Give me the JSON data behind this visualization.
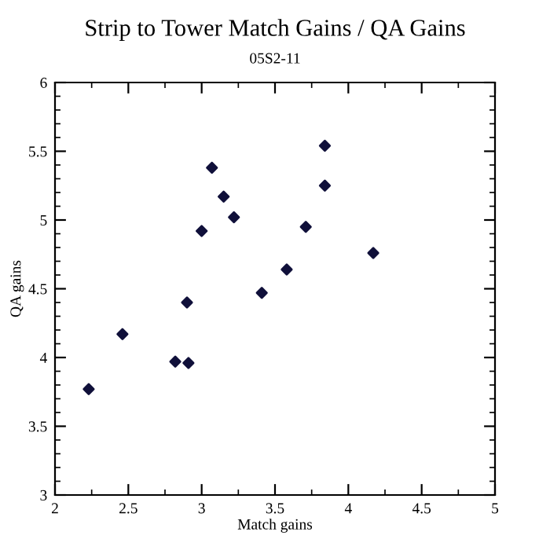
{
  "chart_data": {
    "type": "scatter",
    "title": "Strip to Tower Match Gains / QA Gains",
    "subtitle": "05S2-11",
    "xlabel": "Match gains",
    "ylabel": "QA gains",
    "x": [
      2.23,
      2.46,
      2.82,
      2.9,
      2.91,
      3.0,
      3.07,
      3.15,
      3.22,
      3.41,
      3.58,
      3.71,
      3.84,
      3.84,
      4.17
    ],
    "series": [
      {
        "color": "#10103a",
        "values": [
          3.77,
          4.17,
          3.97,
          4.4,
          3.96,
          4.92,
          5.38,
          5.17,
          5.02,
          4.47,
          4.64,
          4.95,
          5.54,
          5.25,
          4.76
        ]
      }
    ],
    "xlim": [
      2,
      5
    ],
    "ylim": [
      3,
      6
    ],
    "xticks": [
      2,
      2.5,
      3,
      3.5,
      4,
      4.5,
      5
    ],
    "yticks": [
      3,
      3.5,
      4,
      4.5,
      5,
      5.5,
      6
    ],
    "marker": "diamond",
    "grid": false,
    "legend": false
  }
}
